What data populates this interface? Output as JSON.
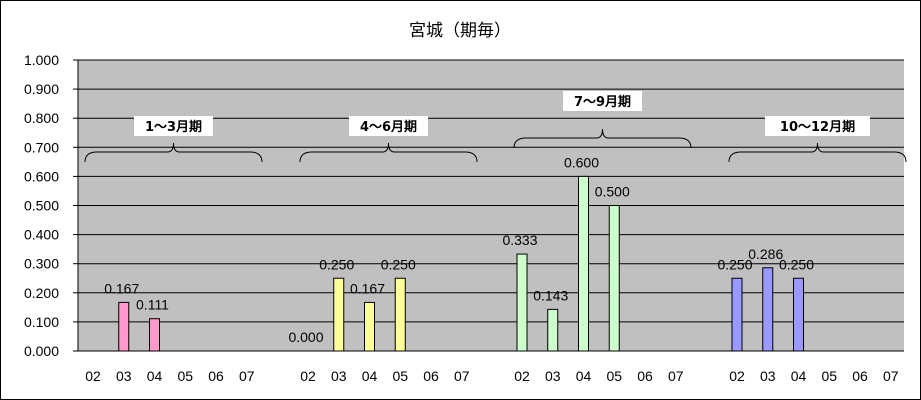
{
  "chart_data": {
    "type": "bar",
    "title": "宮城（期毎）",
    "ylim": [
      0,
      1
    ],
    "yticks": [
      "0.000",
      "0.100",
      "0.200",
      "0.300",
      "0.400",
      "0.500",
      "0.600",
      "0.700",
      "0.800",
      "0.900",
      "1.000"
    ],
    "grid": true,
    "categories": [
      "02",
      "03",
      "04",
      "05",
      "06",
      "07"
    ],
    "groups": [
      {
        "label": "1〜3月期",
        "color": "#ff99cc",
        "values": [
          null,
          0.167,
          0.111,
          null,
          null,
          null
        ],
        "labels": [
          "",
          "0.167",
          "0.111",
          "",
          "",
          ""
        ]
      },
      {
        "label": "4〜6月期",
        "color": "#ffff99",
        "values": [
          0.0,
          0.25,
          0.167,
          0.25,
          null,
          null
        ],
        "labels": [
          "0.000",
          "0.250",
          "0.167",
          "0.250",
          "",
          ""
        ]
      },
      {
        "label": "7〜9月期",
        "color": "#ccffcc",
        "values": [
          0.333,
          0.143,
          0.6,
          0.5,
          null,
          null
        ],
        "labels": [
          "0.333",
          "0.143",
          "0.600",
          "0.500",
          "",
          ""
        ]
      },
      {
        "label": "10〜12月期",
        "color": "#9999ff",
        "values": [
          0.25,
          0.286,
          0.25,
          null,
          null,
          null
        ],
        "labels": [
          "0.250",
          "0.286",
          "0.250",
          "",
          "",
          ""
        ]
      }
    ]
  },
  "colors": {
    "plot_background": "#c0c0c0",
    "bar_border": "#000000"
  }
}
